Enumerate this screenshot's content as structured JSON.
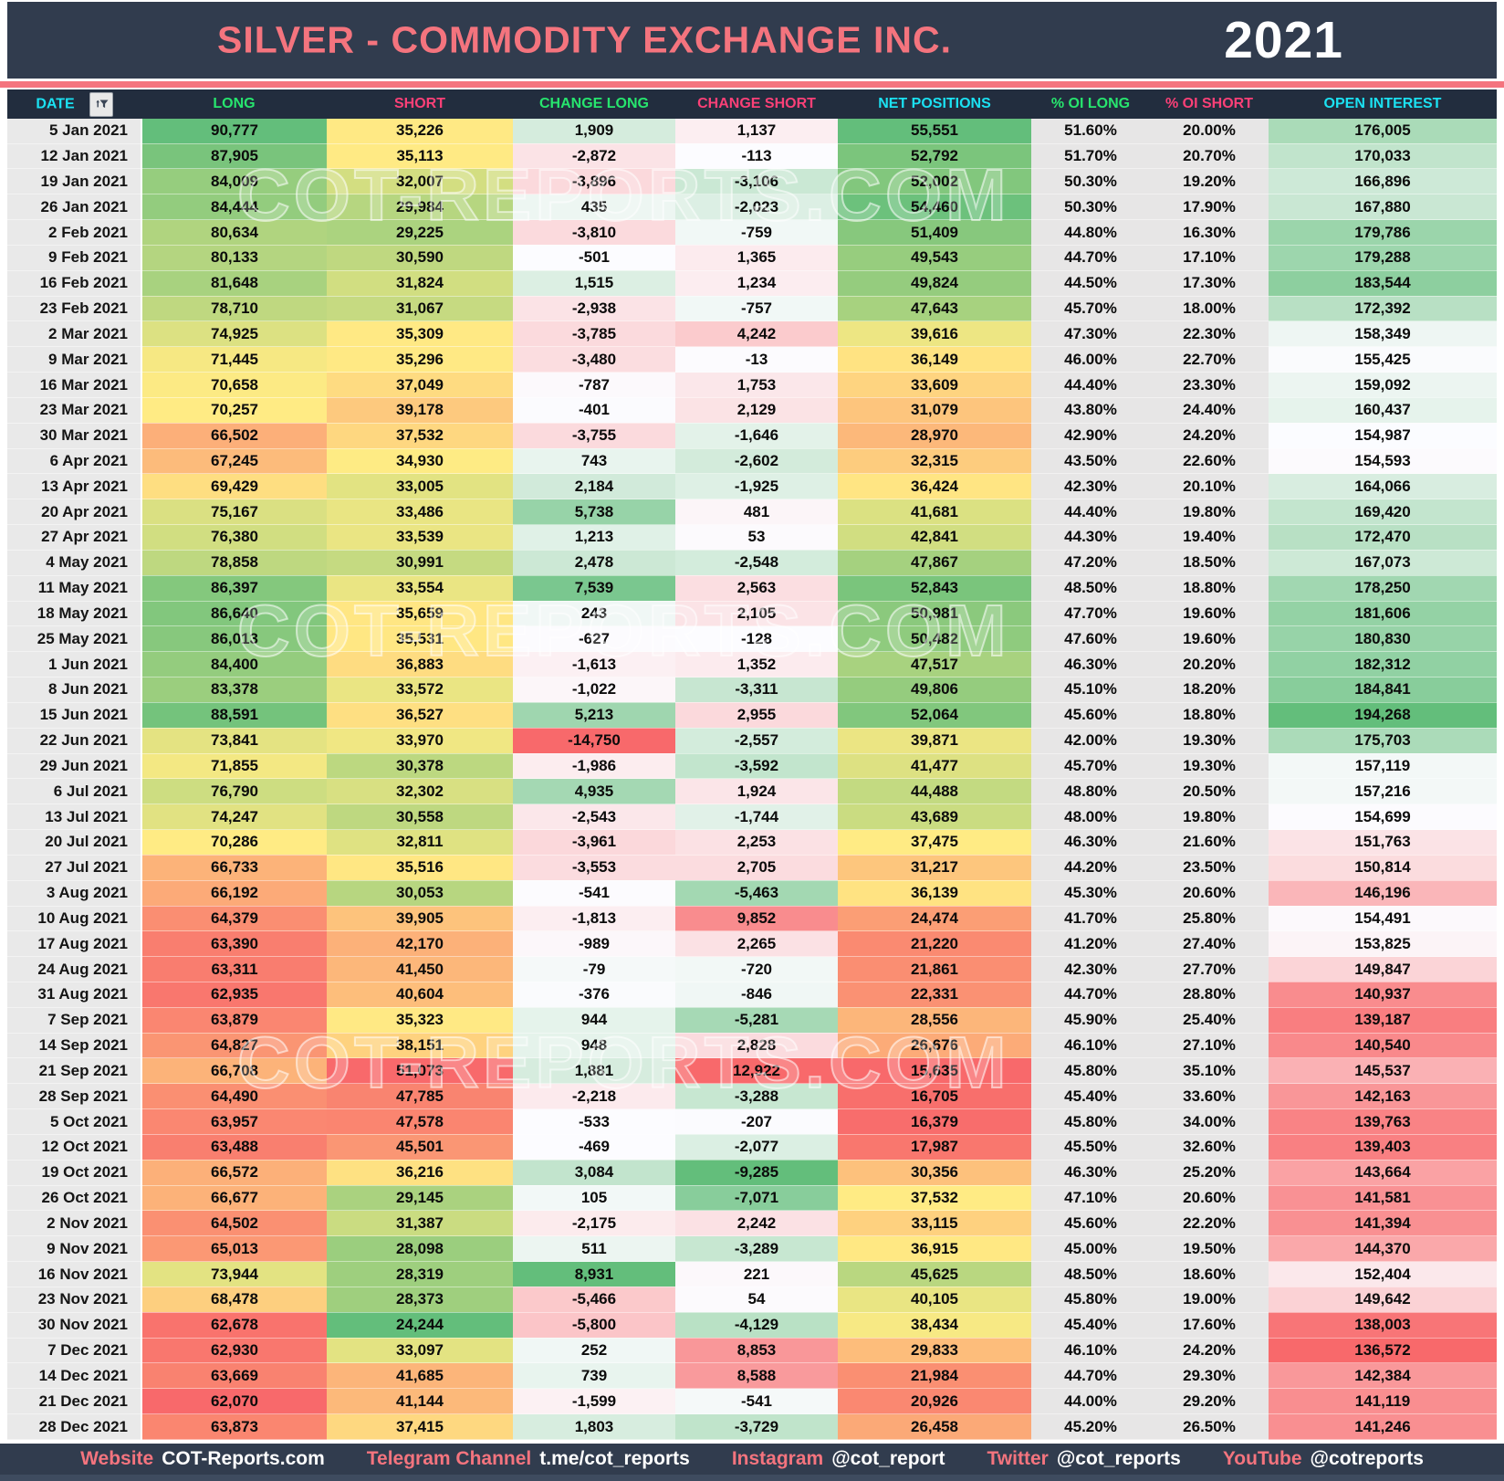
{
  "header": {
    "title": "SILVER - COMMODITY EXCHANGE INC.",
    "year": "2021"
  },
  "watermark": "COT-REPORTS.COM",
  "icons": {
    "date_filter": "filter-funnel-icon"
  },
  "colors": {
    "navy_bar": "#313C4E",
    "column_header_bg": "#222D3E",
    "accent_salmon": "#F4747E",
    "header_cyan": "#1BE1F2",
    "header_green": "#27E56E",
    "header_pink": "#FB4077",
    "date_cell_bg": "#E9E9E9",
    "percent_cell_bg": "#E7E6E6",
    "scale_red": "#F8696B",
    "scale_yellow": "#FFEB84",
    "scale_green": "#63BE7B",
    "scale_white": "#FCFCFF"
  },
  "columns": [
    {
      "key": "date",
      "label": "DATE",
      "tone": "cyan",
      "scale": "none"
    },
    {
      "key": "long",
      "label": "LONG",
      "tone": "green",
      "scale": "ryg"
    },
    {
      "key": "short",
      "label": "SHORT",
      "tone": "pink",
      "scale": "gyr"
    },
    {
      "key": "change_long",
      "label": "CHANGE LONG",
      "tone": "green",
      "scale": "rwg"
    },
    {
      "key": "change_short",
      "label": "CHANGE SHORT",
      "tone": "pink",
      "scale": "gwr"
    },
    {
      "key": "net_positions",
      "label": "NET POSITIONS",
      "tone": "cyan",
      "scale": "ryg"
    },
    {
      "key": "oi_long",
      "label": "% OI LONG",
      "tone": "green",
      "scale": "flat"
    },
    {
      "key": "oi_short",
      "label": "% OI SHORT",
      "tone": "pink",
      "scale": "flat"
    },
    {
      "key": "open_interest",
      "label": "OPEN INTEREST",
      "tone": "cyan",
      "scale": "rwg"
    }
  ],
  "rows": [
    [
      "5 Jan 2021",
      90777,
      35226,
      1909,
      1137,
      55551,
      "51.60%",
      "20.00%",
      176005
    ],
    [
      "12 Jan 2021",
      87905,
      35113,
      -2872,
      -113,
      52792,
      "51.70%",
      "20.70%",
      170033
    ],
    [
      "19 Jan 2021",
      84009,
      32007,
      -3896,
      -3106,
      52002,
      "50.30%",
      "19.20%",
      166896
    ],
    [
      "26 Jan 2021",
      84444,
      29984,
      435,
      -2023,
      54460,
      "50.30%",
      "17.90%",
      167880
    ],
    [
      "2 Feb 2021",
      80634,
      29225,
      -3810,
      -759,
      51409,
      "44.80%",
      "16.30%",
      179786
    ],
    [
      "9 Feb 2021",
      80133,
      30590,
      -501,
      1365,
      49543,
      "44.70%",
      "17.10%",
      179288
    ],
    [
      "16 Feb 2021",
      81648,
      31824,
      1515,
      1234,
      49824,
      "44.50%",
      "17.30%",
      183544
    ],
    [
      "23 Feb 2021",
      78710,
      31067,
      -2938,
      -757,
      47643,
      "45.70%",
      "18.00%",
      172392
    ],
    [
      "2 Mar 2021",
      74925,
      35309,
      -3785,
      4242,
      39616,
      "47.30%",
      "22.30%",
      158349
    ],
    [
      "9 Mar 2021",
      71445,
      35296,
      -3480,
      -13,
      36149,
      "46.00%",
      "22.70%",
      155425
    ],
    [
      "16 Mar 2021",
      70658,
      37049,
      -787,
      1753,
      33609,
      "44.40%",
      "23.30%",
      159092
    ],
    [
      "23 Mar 2021",
      70257,
      39178,
      -401,
      2129,
      31079,
      "43.80%",
      "24.40%",
      160437
    ],
    [
      "30 Mar 2021",
      66502,
      37532,
      -3755,
      -1646,
      28970,
      "42.90%",
      "24.20%",
      154987
    ],
    [
      "6 Apr 2021",
      67245,
      34930,
      743,
      -2602,
      32315,
      "43.50%",
      "22.60%",
      154593
    ],
    [
      "13 Apr 2021",
      69429,
      33005,
      2184,
      -1925,
      36424,
      "42.30%",
      "20.10%",
      164066
    ],
    [
      "20 Apr 2021",
      75167,
      33486,
      5738,
      481,
      41681,
      "44.40%",
      "19.80%",
      169420
    ],
    [
      "27 Apr 2021",
      76380,
      33539,
      1213,
      53,
      42841,
      "44.30%",
      "19.40%",
      172470
    ],
    [
      "4 May 2021",
      78858,
      30991,
      2478,
      -2548,
      47867,
      "47.20%",
      "18.50%",
      167073
    ],
    [
      "11 May 2021",
      86397,
      33554,
      7539,
      2563,
      52843,
      "48.50%",
      "18.80%",
      178250
    ],
    [
      "18 May 2021",
      86640,
      35659,
      243,
      2105,
      50981,
      "47.70%",
      "19.60%",
      181606
    ],
    [
      "25 May 2021",
      86013,
      35531,
      -627,
      -128,
      50482,
      "47.60%",
      "19.60%",
      180830
    ],
    [
      "1 Jun 2021",
      84400,
      36883,
      -1613,
      1352,
      47517,
      "46.30%",
      "20.20%",
      182312
    ],
    [
      "8 Jun 2021",
      83378,
      33572,
      -1022,
      -3311,
      49806,
      "45.10%",
      "18.20%",
      184841
    ],
    [
      "15 Jun 2021",
      88591,
      36527,
      5213,
      2955,
      52064,
      "45.60%",
      "18.80%",
      194268
    ],
    [
      "22 Jun 2021",
      73841,
      33970,
      -14750,
      -2557,
      39871,
      "42.00%",
      "19.30%",
      175703
    ],
    [
      "29 Jun 2021",
      71855,
      30378,
      -1986,
      -3592,
      41477,
      "45.70%",
      "19.30%",
      157119
    ],
    [
      "6 Jul 2021",
      76790,
      32302,
      4935,
      1924,
      44488,
      "48.80%",
      "20.50%",
      157216
    ],
    [
      "13 Jul 2021",
      74247,
      30558,
      -2543,
      -1744,
      43689,
      "48.00%",
      "19.80%",
      154699
    ],
    [
      "20 Jul 2021",
      70286,
      32811,
      -3961,
      2253,
      37475,
      "46.30%",
      "21.60%",
      151763
    ],
    [
      "27 Jul 2021",
      66733,
      35516,
      -3553,
      2705,
      31217,
      "44.20%",
      "23.50%",
      150814
    ],
    [
      "3 Aug 2021",
      66192,
      30053,
      -541,
      -5463,
      36139,
      "45.30%",
      "20.60%",
      146196
    ],
    [
      "10 Aug 2021",
      64379,
      39905,
      -1813,
      9852,
      24474,
      "41.70%",
      "25.80%",
      154491
    ],
    [
      "17 Aug 2021",
      63390,
      42170,
      -989,
      2265,
      21220,
      "41.20%",
      "27.40%",
      153825
    ],
    [
      "24 Aug 2021",
      63311,
      41450,
      -79,
      -720,
      21861,
      "42.30%",
      "27.70%",
      149847
    ],
    [
      "31 Aug 2021",
      62935,
      40604,
      -376,
      -846,
      22331,
      "44.70%",
      "28.80%",
      140937
    ],
    [
      "7 Sep 2021",
      63879,
      35323,
      944,
      -5281,
      28556,
      "45.90%",
      "25.40%",
      139187
    ],
    [
      "14 Sep 2021",
      64827,
      38151,
      948,
      2828,
      26676,
      "46.10%",
      "27.10%",
      140540
    ],
    [
      "21 Sep 2021",
      66708,
      51073,
      1881,
      12922,
      15635,
      "45.80%",
      "35.10%",
      145537
    ],
    [
      "28 Sep 2021",
      64490,
      47785,
      -2218,
      -3288,
      16705,
      "45.40%",
      "33.60%",
      142163
    ],
    [
      "5 Oct 2021",
      63957,
      47578,
      -533,
      -207,
      16379,
      "45.80%",
      "34.00%",
      139763
    ],
    [
      "12 Oct 2021",
      63488,
      45501,
      -469,
      -2077,
      17987,
      "45.50%",
      "32.60%",
      139403
    ],
    [
      "19 Oct 2021",
      66572,
      36216,
      3084,
      -9285,
      30356,
      "46.30%",
      "25.20%",
      143664
    ],
    [
      "26 Oct 2021",
      66677,
      29145,
      105,
      -7071,
      37532,
      "47.10%",
      "20.60%",
      141581
    ],
    [
      "2 Nov 2021",
      64502,
      31387,
      -2175,
      2242,
      33115,
      "45.60%",
      "22.20%",
      141394
    ],
    [
      "9 Nov 2021",
      65013,
      28098,
      511,
      -3289,
      36915,
      "45.00%",
      "19.50%",
      144370
    ],
    [
      "16 Nov 2021",
      73944,
      28319,
      8931,
      221,
      45625,
      "48.50%",
      "18.60%",
      152404
    ],
    [
      "23 Nov 2021",
      68478,
      28373,
      -5466,
      54,
      40105,
      "45.80%",
      "19.00%",
      149642
    ],
    [
      "30 Nov 2021",
      62678,
      24244,
      -5800,
      -4129,
      38434,
      "45.40%",
      "17.60%",
      138003
    ],
    [
      "7 Dec 2021",
      62930,
      33097,
      252,
      8853,
      29833,
      "46.10%",
      "24.20%",
      136572
    ],
    [
      "14 Dec 2021",
      63669,
      41685,
      739,
      8588,
      21984,
      "44.70%",
      "29.30%",
      142384
    ],
    [
      "21 Dec 2021",
      62070,
      41144,
      -1599,
      -541,
      20926,
      "44.00%",
      "29.20%",
      141119
    ],
    [
      "28 Dec 2021",
      63873,
      37415,
      1803,
      -3729,
      26458,
      "45.20%",
      "26.50%",
      141246
    ]
  ],
  "footer": {
    "items": [
      {
        "label": "Website",
        "value": "COT-Reports.com"
      },
      {
        "label": "Telegram Channel",
        "value": "t.me/cot_reports"
      },
      {
        "label": "Instagram",
        "value": "@cot_report"
      },
      {
        "label": "Twitter",
        "value": "@cot_reports"
      },
      {
        "label": "YouTube",
        "value": "@cotreports"
      }
    ]
  }
}
